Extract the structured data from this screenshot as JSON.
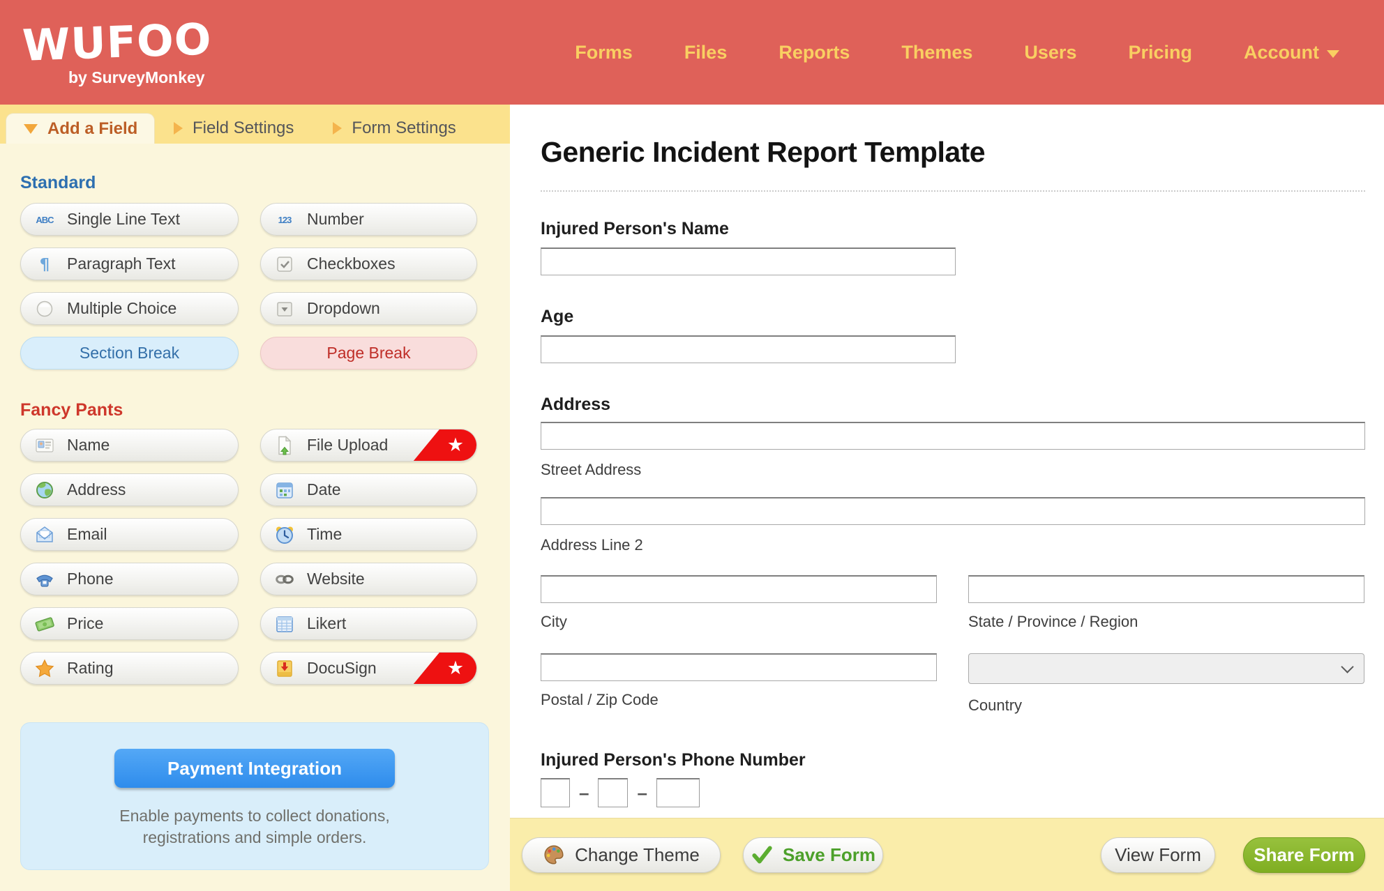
{
  "header": {
    "logo": "WUFOO",
    "logo_sub": "by SurveyMonkey",
    "nav": [
      {
        "label": "Forms"
      },
      {
        "label": "Files"
      },
      {
        "label": "Reports"
      },
      {
        "label": "Themes"
      },
      {
        "label": "Users"
      },
      {
        "label": "Pricing"
      },
      {
        "label": "Account",
        "has_dropdown": true
      }
    ]
  },
  "sidebar": {
    "tabs": [
      {
        "label": "Add a Field",
        "active": true
      },
      {
        "label": "Field Settings",
        "active": false
      },
      {
        "label": "Form Settings",
        "active": false
      }
    ],
    "sections": [
      {
        "heading": "Standard",
        "heading_color": "#2D6FB0",
        "buttons": [
          {
            "label": "Single Line Text",
            "icon": "abc-icon"
          },
          {
            "label": "Number",
            "icon": "number-icon"
          },
          {
            "label": "Paragraph Text",
            "icon": "pilcrow-icon"
          },
          {
            "label": "Checkboxes",
            "icon": "checkbox-icon"
          },
          {
            "label": "Multiple Choice",
            "icon": "radio-icon"
          },
          {
            "label": "Dropdown",
            "icon": "dropdown-icon"
          },
          {
            "label": "Section Break",
            "variant": "section-break"
          },
          {
            "label": "Page Break",
            "variant": "page-break"
          }
        ]
      },
      {
        "heading": "Fancy Pants",
        "heading_color": "#CE372B",
        "buttons": [
          {
            "label": "Name",
            "icon": "vcard-icon"
          },
          {
            "label": "File Upload",
            "icon": "file-upload-icon",
            "starred": true
          },
          {
            "label": "Address",
            "icon": "globe-icon"
          },
          {
            "label": "Date",
            "icon": "calendar-icon"
          },
          {
            "label": "Email",
            "icon": "email-icon"
          },
          {
            "label": "Time",
            "icon": "clock-icon"
          },
          {
            "label": "Phone",
            "icon": "phone-icon"
          },
          {
            "label": "Website",
            "icon": "link-icon"
          },
          {
            "label": "Price",
            "icon": "money-icon"
          },
          {
            "label": "Likert",
            "icon": "likert-icon"
          },
          {
            "label": "Rating",
            "icon": "star-icon"
          },
          {
            "label": "DocuSign",
            "icon": "docusign-icon",
            "starred": true
          }
        ]
      }
    ],
    "payment": {
      "button_label": "Payment Integration",
      "description": "Enable payments to collect donations, registrations and simple orders."
    }
  },
  "form": {
    "title": "Generic Incident Report Template",
    "name_label": "Injured Person's Name",
    "age_label": "Age",
    "address_label": "Address",
    "street_sublabel": "Street Address",
    "line2_sublabel": "Address Line 2",
    "city_sublabel": "City",
    "state_sublabel": "State / Province / Region",
    "postal_sublabel": "Postal / Zip Code",
    "country_sublabel": "Country",
    "phone_label": "Injured Person's Phone Number",
    "phone_separator": "–",
    "phone_masks": [
      "###",
      "###",
      "####"
    ],
    "inputs": {
      "name_value": "",
      "age_value": "",
      "street_value": "",
      "line2_value": "",
      "city_value": "",
      "state_value": "",
      "postal_value": "",
      "country_value": ""
    }
  },
  "footer": {
    "change_theme_label": "Change Theme",
    "save_form_label": "Save Form",
    "view_form_label": "View Form",
    "share_form_label": "Share Form"
  },
  "colors": {
    "header_red": "#DF6159",
    "nav_yellow": "#F9CF62",
    "tab_bar_yellow": "#FBE28D",
    "active_tab_text": "#BC5E26",
    "panel_cream": "#FBF6DC",
    "standard_blue": "#2D6FB0",
    "fancy_red": "#CE372B",
    "section_break_blue": "#D9EEFB",
    "page_break_pink": "#F9DDDC",
    "payment_panel_blue": "#D9EEFA",
    "payment_button_blue": "#3498F0",
    "badge_red": "#EE1111",
    "footer_yellow": "#FAEDAA",
    "save_green": "#4CA02A",
    "share_green": "#7FAE22"
  }
}
